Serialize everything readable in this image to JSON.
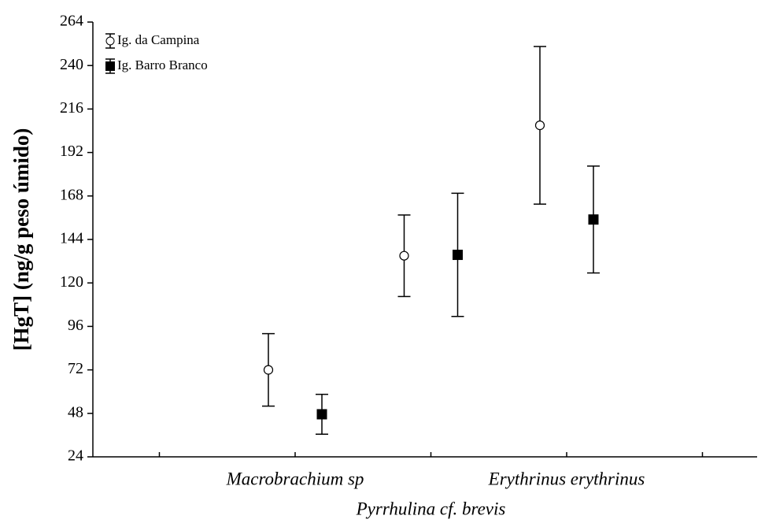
{
  "chart_data": {
    "type": "errorbar",
    "y_label": "[HgT] (ng/g peso úmido)",
    "categories": [
      "Macrobrachium sp",
      "Pyrrhulina cf. brevis",
      "Erythrinus erythrinus"
    ],
    "series": [
      {
        "name": "Ig. da Campina",
        "color": "#ffffff",
        "marker": "circle",
        "values": [
          72,
          135,
          207
        ],
        "errors": [
          20,
          22.5,
          43.5
        ]
      },
      {
        "name": "Ig. Barro Branco",
        "color": "#000000",
        "marker": "square",
        "values": [
          47.5,
          135.5,
          155
        ],
        "errors": [
          11,
          34,
          29.5
        ]
      }
    ],
    "ylim": [
      24,
      264
    ],
    "yticks": [
      24,
      48,
      72,
      96,
      120,
      144,
      168,
      192,
      216,
      240,
      264
    ],
    "legend": "upper left"
  }
}
